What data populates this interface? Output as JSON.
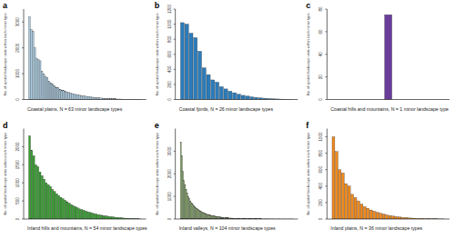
{
  "chart_data": [
    {
      "type": "bar",
      "title": "a",
      "x_label": "Coastal plains, N = 63 minor landscape types",
      "y_label": "No. of spatial landscape units within each minor type",
      "color": "#a9cce3",
      "tick_labels": "y",
      "ylim": [
        0,
        3500
      ],
      "yticks": [
        0,
        1000,
        2000,
        3000
      ],
      "values": [
        3200,
        2700,
        2650,
        2000,
        1600,
        1550,
        1500,
        1100,
        1000,
        900,
        850,
        700,
        650,
        600,
        520,
        480,
        450,
        400,
        370,
        340,
        310,
        290,
        270,
        250,
        230,
        210,
        195,
        180,
        165,
        150,
        140,
        130,
        120,
        110,
        100,
        92,
        85,
        78,
        70,
        64,
        58,
        52,
        47,
        42,
        38,
        34,
        30,
        27,
        24,
        21,
        18,
        16,
        14,
        12,
        10,
        8,
        7,
        6,
        5,
        4,
        3,
        2,
        1
      ]
    },
    {
      "type": "bar",
      "title": "b",
      "x_label": "Coastal fjords, N = 26 minor landscape types",
      "y_label": "No. of spatial landscape units within each minor type",
      "color": "#2b7bba",
      "tick_labels": "y",
      "ylim": [
        0,
        1200
      ],
      "yticks": [
        0,
        200,
        400,
        600,
        800,
        1000,
        1200
      ],
      "values": [
        1020,
        1000,
        880,
        820,
        640,
        420,
        330,
        260,
        230,
        170,
        140,
        110,
        90,
        70,
        55,
        45,
        35,
        28,
        22,
        17,
        13,
        10,
        7,
        5,
        3,
        2
      ]
    },
    {
      "type": "bar",
      "title": "c",
      "x_label": "Coastal hills and mountains, N = 1 minor landscape type",
      "y_label": "No. of spatial landscape units within each minor type",
      "color": "#6a3d9a",
      "tick_labels": "y",
      "ylim": [
        0,
        80
      ],
      "yticks": [
        0,
        20,
        40,
        60,
        80
      ],
      "values": [
        75
      ]
    },
    {
      "type": "bar",
      "title": "d",
      "x_label": "Inland hills and mountains, N = 54 minor landscape types",
      "y_label": "No. of spatial landscape units within each minor type",
      "color": "#33a02c",
      "tick_labels": "y",
      "ylim": [
        0,
        2500
      ],
      "yticks": [
        0,
        500,
        1000,
        1500,
        2000
      ],
      "values": [
        2300,
        1900,
        1750,
        1500,
        1450,
        1300,
        1200,
        1100,
        1000,
        950,
        900,
        820,
        760,
        700,
        650,
        600,
        560,
        520,
        480,
        440,
        400,
        370,
        340,
        310,
        280,
        260,
        240,
        220,
        200,
        180,
        165,
        150,
        135,
        120,
        110,
        100,
        90,
        80,
        72,
        64,
        56,
        50,
        44,
        38,
        33,
        28,
        24,
        20,
        16,
        13,
        10,
        7,
        5,
        3
      ]
    },
    {
      "type": "bar",
      "title": "e",
      "x_label": "Inland valleys, N = 104 minor landscape types",
      "y_label": "No. of spatial landscape units within each minor type",
      "color": "#8db36b",
      "tick_labels": "y",
      "ylim": [
        0,
        4000
      ],
      "yticks": [
        0,
        1000,
        2000,
        3000
      ],
      "values": [
        3400,
        2800,
        2100,
        1700,
        1500,
        1300,
        1150,
        1000,
        900,
        800,
        720,
        650,
        600,
        550,
        500,
        460,
        420,
        390,
        360,
        330,
        300,
        280,
        260,
        240,
        220,
        205,
        190,
        175,
        160,
        150,
        140,
        130,
        120,
        112,
        104,
        96,
        90,
        84,
        78,
        72,
        67,
        62,
        58,
        54,
        50,
        46,
        43,
        40,
        37,
        34,
        32,
        30,
        28,
        26,
        24,
        22,
        21,
        20,
        19,
        18,
        17,
        16,
        15,
        14,
        13,
        12,
        11,
        10,
        10,
        9,
        9,
        8,
        8,
        7,
        7,
        6,
        6,
        5,
        5,
        5,
        4,
        4,
        4,
        3,
        3,
        3,
        3,
        2,
        2,
        2,
        2,
        2,
        1,
        1,
        1,
        1,
        1,
        1,
        1,
        1,
        1,
        1,
        1,
        1
      ]
    },
    {
      "type": "bar",
      "title": "f",
      "x_label": "Inland plains, N = 36 minor landscape types",
      "y_label": "No. of spatial landscape units within each minor type",
      "color": "#f0891c",
      "tick_labels": "y",
      "ylim": [
        0,
        1100
      ],
      "yticks": [
        0,
        200,
        400,
        600,
        800,
        1000
      ],
      "values": [
        1000,
        820,
        600,
        560,
        430,
        400,
        300,
        260,
        220,
        180,
        150,
        130,
        110,
        95,
        80,
        70,
        60,
        50,
        42,
        36,
        30,
        25,
        21,
        17,
        14,
        11,
        9,
        7,
        6,
        5,
        4,
        3,
        2,
        2,
        1,
        1
      ]
    }
  ]
}
